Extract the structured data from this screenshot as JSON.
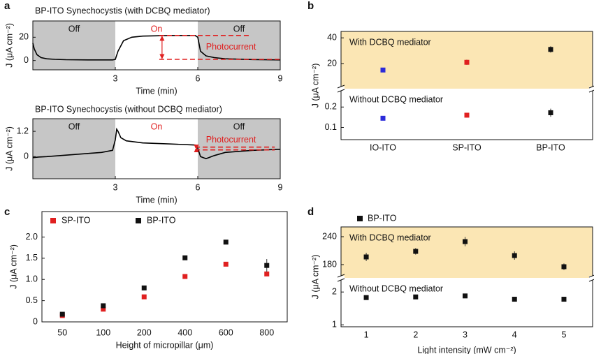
{
  "chart_data": [
    {
      "panel": "a",
      "type": "line",
      "title": "BP-ITO Synechocystis (with DCBQ mediator)",
      "xlabel": "Time (min)",
      "ylabel": "J (μA cm⁻²)",
      "xlim": [
        0,
        9
      ],
      "xticks": [
        3,
        6,
        9
      ],
      "ylim": [
        -8,
        34
      ],
      "yticks": [
        0,
        20
      ],
      "color": "#000000",
      "x": [
        0,
        0.05,
        0.15,
        0.3,
        0.5,
        0.8,
        1.2,
        2,
        2.9,
        3.0,
        3.1,
        3.3,
        3.6,
        4,
        5,
        5.9,
        6.0,
        6.1,
        6.3,
        6.6,
        7,
        8,
        9
      ],
      "values": [
        15,
        10,
        5,
        2.5,
        1.5,
        1,
        0.7,
        0.5,
        0.5,
        1,
        8,
        17,
        20,
        21,
        21.5,
        21.5,
        20,
        8,
        4,
        2.5,
        1.5,
        0.8,
        0.5
      ],
      "regions": [
        {
          "label": "Off",
          "range": [
            0,
            3
          ],
          "color": "#c6c6c6",
          "label_color": "#111111"
        },
        {
          "label": "On",
          "range": [
            3,
            6
          ],
          "color": "#ffffff",
          "label_color": "#e02020"
        },
        {
          "label": "Off",
          "range": [
            6,
            9
          ],
          "color": "#c6c6c6",
          "label_color": "#111111"
        }
      ],
      "annotation": "Photocurrent",
      "annotation_levels": [
        21.5,
        1
      ],
      "annotation_color": "#e02020"
    },
    {
      "type": "line",
      "title": "BP-ITO Synechocystis (without DCBQ mediator)",
      "xlabel": "Time (min)",
      "ylabel": "J (μA cm⁻²)",
      "xlim": [
        0,
        9
      ],
      "xticks": [
        3,
        6,
        9
      ],
      "ylim": [
        -1.05,
        1.8
      ],
      "yticks": [
        0,
        1.2
      ],
      "color": "#000000",
      "x": [
        0,
        0.2,
        0.5,
        1,
        1.5,
        2,
        2.5,
        2.9,
        3.0,
        3.05,
        3.1,
        3.2,
        3.4,
        3.7,
        4,
        5,
        5.9,
        6.0,
        6.1,
        6.3,
        6.6,
        7,
        8,
        9
      ],
      "values": [
        -0.05,
        -0.02,
        0,
        0.05,
        0.1,
        0.15,
        0.2,
        0.3,
        0.8,
        1.3,
        1.2,
        0.9,
        0.75,
        0.7,
        0.65,
        0.6,
        0.55,
        0.4,
        0.0,
        -0.1,
        0.05,
        0.2,
        0.3,
        0.35
      ],
      "regions": [
        {
          "label": "Off",
          "range": [
            0,
            3
          ],
          "color": "#c6c6c6",
          "label_color": "#111111"
        },
        {
          "label": "On",
          "range": [
            3,
            6
          ],
          "color": "#ffffff",
          "label_color": "#e02020"
        },
        {
          "label": "Off",
          "range": [
            6,
            9
          ],
          "color": "#c6c6c6",
          "label_color": "#111111"
        }
      ],
      "annotation": "Photocurrent",
      "annotation_levels": [
        0.45,
        0.32
      ],
      "annotation_color": "#e02020"
    },
    {
      "panel": "b",
      "type": "scatter",
      "ylabel": "J (μA cm⁻²)",
      "categories": [
        "IO-ITO",
        "SP-ITO",
        "BP-ITO"
      ],
      "colors": [
        "#2b2bd9",
        "#e02020",
        "#111111"
      ],
      "segments": [
        {
          "label": "With DCBQ mediator",
          "ylim": [
            0.5,
            45
          ],
          "yticks": [
            20,
            40
          ],
          "values": [
            15,
            21,
            31
          ],
          "errors": [
            0.8,
            2,
            2.5
          ],
          "shade": "#fbe6b4"
        },
        {
          "label": "Without DCBQ mediator",
          "ylim": [
            0.04,
            0.29
          ],
          "yticks": [
            0.1,
            0.2
          ],
          "values": [
            0.145,
            0.16,
            0.172
          ],
          "errors": [
            0.005,
            0.012,
            0.02
          ],
          "shade": "#ffffff"
        }
      ]
    },
    {
      "panel": "c",
      "type": "scatter",
      "xlabel": "Height of micropillar (μm)",
      "ylabel": "J (μA cm⁻²)",
      "categories": [
        "50",
        "100",
        "200",
        "400",
        "600",
        "800"
      ],
      "ylim": [
        0,
        2.6
      ],
      "yticks": [
        0,
        0.5,
        {
          "value": 1,
          "label": "1.0"
        },
        1.5,
        {
          "value": 2,
          "label": "2.0"
        }
      ],
      "series": [
        {
          "name": "SP-ITO",
          "color": "#e02020",
          "values": [
            0.15,
            0.3,
            0.59,
            1.07,
            1.36,
            1.13
          ],
          "errors": [
            0.01,
            0.02,
            0.02,
            0.02,
            0.02,
            0.03
          ]
        },
        {
          "name": "BP-ITO",
          "color": "#111111",
          "values": [
            0.18,
            0.38,
            0.8,
            1.51,
            1.88,
            1.33
          ],
          "errors": [
            0.02,
            0.03,
            0.03,
            0.05,
            0.05,
            0.15
          ]
        }
      ]
    },
    {
      "panel": "d",
      "type": "scatter",
      "xlabel": "Light intensity (mW cm⁻²)",
      "ylabel": "J (μA cm⁻²)",
      "x": [
        1,
        2,
        3,
        4,
        5
      ],
      "xlim": [
        0.49,
        5.58
      ],
      "xticks": [
        1,
        2,
        3,
        4,
        5
      ],
      "series_name": "BP-ITO",
      "color": "#111111",
      "segments": [
        {
          "label": "With DCBQ mediator",
          "ylim": [
            151.5,
            261
          ],
          "yticks": [
            180,
            240
          ],
          "values": [
            196.5,
            208.5,
            229.5,
            199.5,
            175.5
          ],
          "errors": [
            9,
            7,
            10,
            9,
            7
          ],
          "shade": "#fbe6b4"
        },
        {
          "label": "Without DCBQ mediator",
          "ylim": [
            0.94,
            2.43
          ],
          "yticks": [
            1,
            2
          ],
          "values": [
            1.83,
            1.85,
            1.88,
            1.78,
            1.78
          ],
          "errors": [
            0.02,
            0.02,
            0.02,
            0.02,
            0.02
          ],
          "shade": "#ffffff"
        }
      ]
    }
  ]
}
